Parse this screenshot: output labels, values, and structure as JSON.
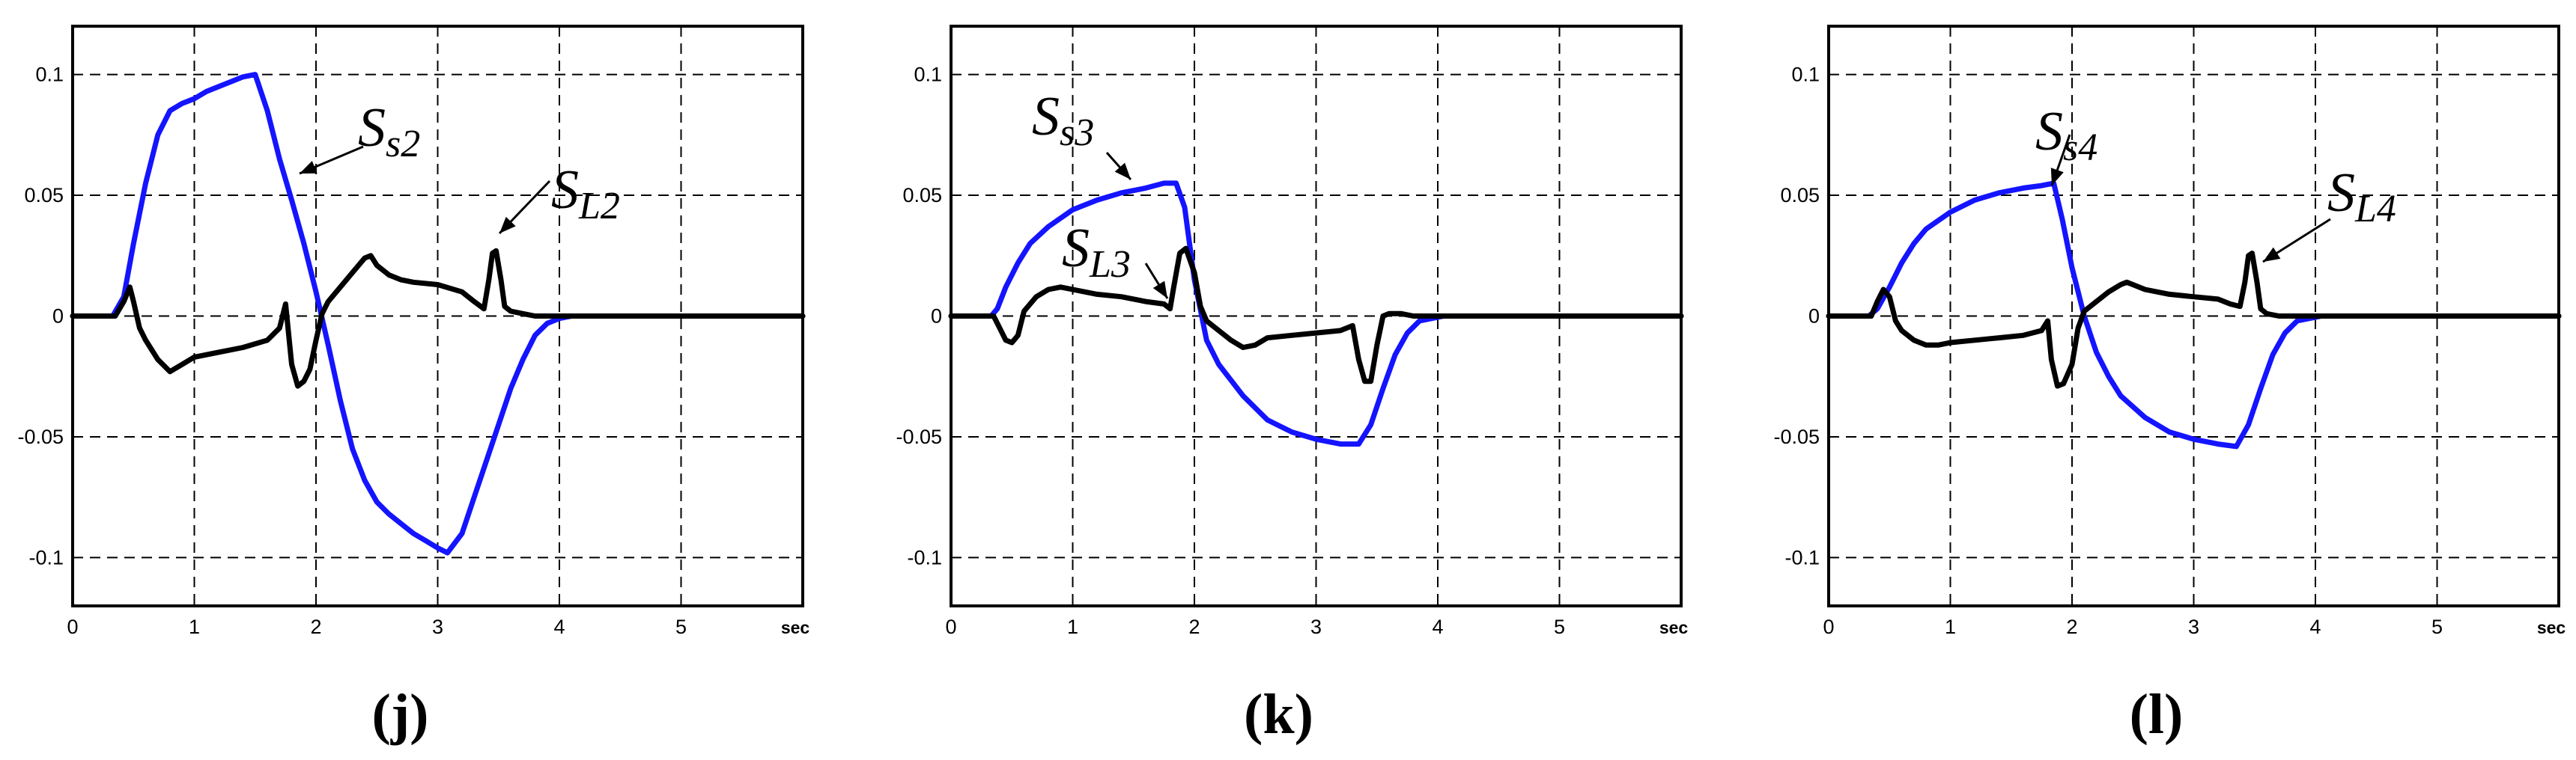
{
  "colors": {
    "Ss": "#1414ff",
    "SL": "#000000",
    "grid": "#000000",
    "frame": "#000000"
  },
  "chart_data": [
    {
      "type": "line",
      "panel_label": "(j)",
      "xlim": [
        0,
        6
      ],
      "ylim": [
        -0.12,
        0.12
      ],
      "xticks": [
        "0",
        "1",
        "2",
        "3",
        "4",
        "5",
        "sec"
      ],
      "yticks": [
        "0.1",
        "0.05",
        "0",
        "-0.05",
        "-0.1"
      ],
      "grid": true,
      "series": [
        {
          "name": "Ss2",
          "color": "#1414ff",
          "x": [
            0,
            0.33,
            0.42,
            0.5,
            0.6,
            0.7,
            0.8,
            0.9,
            1.0,
            1.1,
            1.2,
            1.3,
            1.4,
            1.5,
            1.6,
            1.7,
            1.8,
            1.9,
            2.0,
            2.1,
            2.2,
            2.3,
            2.4,
            2.5,
            2.6,
            2.7,
            2.8,
            2.9,
            3.0,
            3.08,
            3.2,
            3.3,
            3.4,
            3.5,
            3.6,
            3.7,
            3.8,
            3.9,
            4.0,
            4.1,
            4.2,
            6.0
          ],
          "y": [
            0,
            0,
            0.008,
            0.03,
            0.055,
            0.075,
            0.085,
            0.088,
            0.09,
            0.093,
            0.095,
            0.097,
            0.099,
            0.1,
            0.085,
            0.065,
            0.048,
            0.03,
            0.01,
            -0.012,
            -0.035,
            -0.055,
            -0.068,
            -0.077,
            -0.082,
            -0.086,
            -0.09,
            -0.093,
            -0.096,
            -0.098,
            -0.09,
            -0.075,
            -0.06,
            -0.045,
            -0.03,
            -0.018,
            -0.008,
            -0.003,
            -0.001,
            0,
            0,
            0
          ]
        },
        {
          "name": "SL2",
          "color": "#000000",
          "x": [
            0,
            0.35,
            0.42,
            0.47,
            0.5,
            0.55,
            0.6,
            0.7,
            0.8,
            0.9,
            1.0,
            1.2,
            1.4,
            1.6,
            1.7,
            1.75,
            1.8,
            1.85,
            1.9,
            1.95,
            2.0,
            2.05,
            2.1,
            2.2,
            2.3,
            2.4,
            2.45,
            2.5,
            2.6,
            2.7,
            2.8,
            3.0,
            3.2,
            3.3,
            3.38,
            3.42,
            3.45,
            3.48,
            3.52,
            3.55,
            3.6,
            3.7,
            3.8,
            3.9,
            4.0,
            6.0
          ],
          "y": [
            0,
            0,
            0.006,
            0.012,
            0.006,
            -0.005,
            -0.01,
            -0.018,
            -0.023,
            -0.02,
            -0.017,
            -0.015,
            -0.013,
            -0.01,
            -0.005,
            0.005,
            -0.02,
            -0.029,
            -0.027,
            -0.022,
            -0.01,
            0.001,
            0.006,
            0.012,
            0.018,
            0.024,
            0.025,
            0.021,
            0.017,
            0.015,
            0.014,
            0.013,
            0.01,
            0.006,
            0.003,
            0.015,
            0.026,
            0.027,
            0.015,
            0.004,
            0.002,
            0.001,
            0,
            0,
            0,
            0
          ]
        }
      ],
      "annotations": [
        {
          "main": "S",
          "sub": "s2"
        },
        {
          "main": "S",
          "sub": "L2"
        }
      ]
    },
    {
      "type": "line",
      "panel_label": "(k)",
      "xlim": [
        0,
        6
      ],
      "ylim": [
        -0.12,
        0.12
      ],
      "xticks": [
        "0",
        "1",
        "2",
        "3",
        "4",
        "5",
        "sec"
      ],
      "yticks": [
        "0.1",
        "0.05",
        "0",
        "-0.05",
        "-0.1"
      ],
      "grid": true,
      "series": [
        {
          "name": "Ss3",
          "color": "#1414ff",
          "x": [
            0,
            0.33,
            0.38,
            0.45,
            0.55,
            0.65,
            0.8,
            1.0,
            1.2,
            1.4,
            1.6,
            1.75,
            1.85,
            1.92,
            2.0,
            2.1,
            2.2,
            2.4,
            2.6,
            2.8,
            3.0,
            3.2,
            3.35,
            3.45,
            3.55,
            3.65,
            3.75,
            3.85,
            3.95,
            4.05,
            6.0
          ],
          "y": [
            0,
            0,
            0.003,
            0.012,
            0.022,
            0.03,
            0.037,
            0.044,
            0.048,
            0.051,
            0.053,
            0.055,
            0.055,
            0.045,
            0.015,
            -0.01,
            -0.02,
            -0.033,
            -0.043,
            -0.048,
            -0.051,
            -0.053,
            -0.053,
            -0.045,
            -0.03,
            -0.016,
            -0.007,
            -0.002,
            -0.001,
            0,
            0
          ]
        },
        {
          "name": "SL3",
          "color": "#000000",
          "x": [
            0,
            0.35,
            0.4,
            0.45,
            0.5,
            0.55,
            0.6,
            0.7,
            0.8,
            0.9,
            1.0,
            1.2,
            1.4,
            1.6,
            1.75,
            1.8,
            1.83,
            1.88,
            1.93,
            2.0,
            2.05,
            2.1,
            2.2,
            2.3,
            2.4,
            2.5,
            2.6,
            2.8,
            3.0,
            3.2,
            3.3,
            3.35,
            3.4,
            3.45,
            3.5,
            3.55,
            3.6,
            3.7,
            3.8,
            3.9,
            4.0,
            6.0
          ],
          "y": [
            0,
            0,
            -0.005,
            -0.01,
            -0.011,
            -0.008,
            0.002,
            0.008,
            0.011,
            0.012,
            0.011,
            0.009,
            0.008,
            0.006,
            0.005,
            0.003,
            0.012,
            0.026,
            0.028,
            0.018,
            0.004,
            -0.002,
            -0.006,
            -0.01,
            -0.013,
            -0.012,
            -0.009,
            -0.008,
            -0.007,
            -0.006,
            -0.004,
            -0.018,
            -0.027,
            -0.027,
            -0.012,
            0,
            0.001,
            0.001,
            0,
            0,
            0,
            0
          ]
        }
      ],
      "annotations": [
        {
          "main": "S",
          "sub": "s3"
        },
        {
          "main": "S",
          "sub": "L3"
        }
      ]
    },
    {
      "type": "line",
      "panel_label": "(l)",
      "xlim": [
        0,
        6
      ],
      "ylim": [
        -0.12,
        0.12
      ],
      "xticks": [
        "0",
        "1",
        "2",
        "3",
        "4",
        "5",
        "sec"
      ],
      "yticks": [
        "0.1",
        "0.05",
        "0",
        "-0.05",
        "-0.1"
      ],
      "grid": true,
      "series": [
        {
          "name": "Ss4",
          "color": "#1414ff",
          "x": [
            0,
            0.33,
            0.4,
            0.5,
            0.6,
            0.7,
            0.8,
            1.0,
            1.2,
            1.4,
            1.6,
            1.75,
            1.85,
            1.92,
            2.0,
            2.1,
            2.2,
            2.3,
            2.4,
            2.6,
            2.8,
            3.0,
            3.2,
            3.35,
            3.45,
            3.55,
            3.65,
            3.75,
            3.85,
            3.95,
            4.05,
            6.0
          ],
          "y": [
            0,
            0,
            0.003,
            0.012,
            0.022,
            0.03,
            0.036,
            0.043,
            0.048,
            0.051,
            0.053,
            0.054,
            0.055,
            0.04,
            0.02,
            0,
            -0.015,
            -0.025,
            -0.033,
            -0.042,
            -0.048,
            -0.051,
            -0.053,
            -0.054,
            -0.045,
            -0.03,
            -0.016,
            -0.007,
            -0.002,
            -0.001,
            0,
            0
          ]
        },
        {
          "name": "SL4",
          "color": "#000000",
          "x": [
            0,
            0.35,
            0.4,
            0.45,
            0.5,
            0.55,
            0.6,
            0.7,
            0.8,
            0.9,
            1.0,
            1.2,
            1.4,
            1.6,
            1.75,
            1.8,
            1.83,
            1.88,
            1.93,
            2.0,
            2.05,
            2.1,
            2.2,
            2.3,
            2.4,
            2.45,
            2.5,
            2.6,
            2.8,
            3.0,
            3.2,
            3.3,
            3.38,
            3.42,
            3.45,
            3.48,
            3.52,
            3.55,
            3.6,
            3.7,
            3.8,
            3.9,
            4.0,
            6.0
          ],
          "y": [
            0,
            0,
            0.006,
            0.011,
            0.008,
            -0.002,
            -0.006,
            -0.01,
            -0.012,
            -0.012,
            -0.011,
            -0.01,
            -0.009,
            -0.008,
            -0.006,
            -0.002,
            -0.018,
            -0.029,
            -0.028,
            -0.02,
            -0.005,
            0.002,
            0.006,
            0.01,
            0.013,
            0.014,
            0.013,
            0.011,
            0.009,
            0.008,
            0.007,
            0.005,
            0.004,
            0.014,
            0.025,
            0.026,
            0.014,
            0.003,
            0.001,
            0,
            0,
            0,
            0,
            0
          ]
        }
      ],
      "annotations": [
        {
          "main": "S",
          "sub": "s4"
        },
        {
          "main": "S",
          "sub": "L4"
        }
      ]
    }
  ]
}
